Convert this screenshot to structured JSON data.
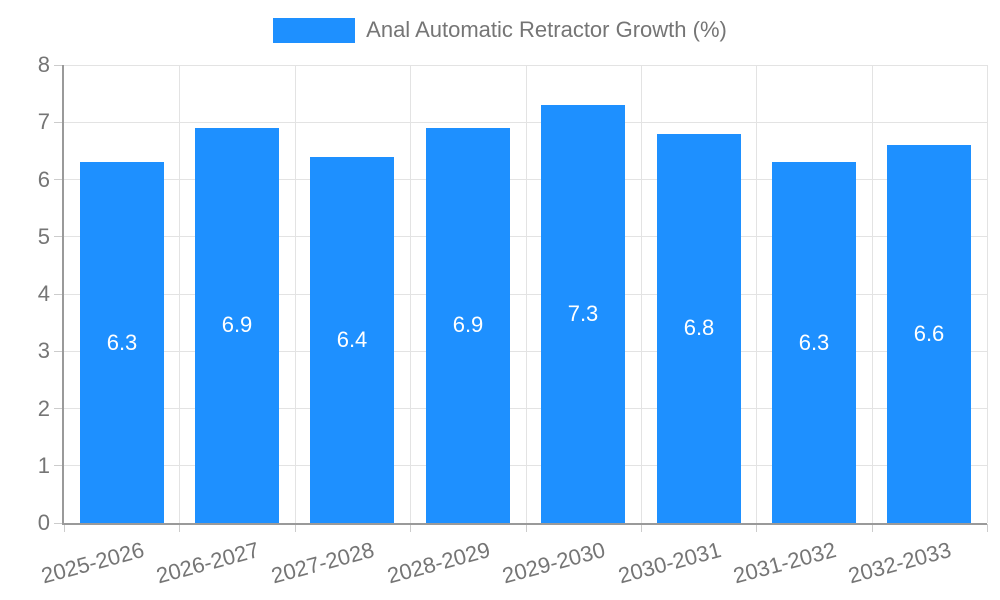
{
  "chart_data": {
    "type": "bar",
    "title": "Anal Automatic Retractor Growth (%)",
    "categories": [
      "2025-2026",
      "2026-2027",
      "2027-2028",
      "2028-2029",
      "2029-2030",
      "2030-2031",
      "2031-2032",
      "2032-2033"
    ],
    "values": [
      6.3,
      6.9,
      6.4,
      6.9,
      7.3,
      6.8,
      6.3,
      6.6
    ],
    "value_labels": [
      "6.3",
      "6.9",
      "6.4",
      "6.9",
      "7.3",
      "6.8",
      "6.3",
      "6.6"
    ],
    "xlabel": "",
    "ylabel": "",
    "ylim": [
      0,
      8
    ],
    "y_tick_step": 1,
    "y_tick_labels": [
      "0",
      "1",
      "2",
      "3",
      "4",
      "5",
      "6",
      "7",
      "8"
    ],
    "grid": "on",
    "legend_position": "top-center",
    "x_label_rotation_deg": -15,
    "colors": {
      "bar": "#1e90ff",
      "value_label": "#ffffff",
      "axis": "#9a9a9a",
      "gridline": "#e3e3e3",
      "tick": "#cccccc",
      "text": "#757575"
    }
  }
}
